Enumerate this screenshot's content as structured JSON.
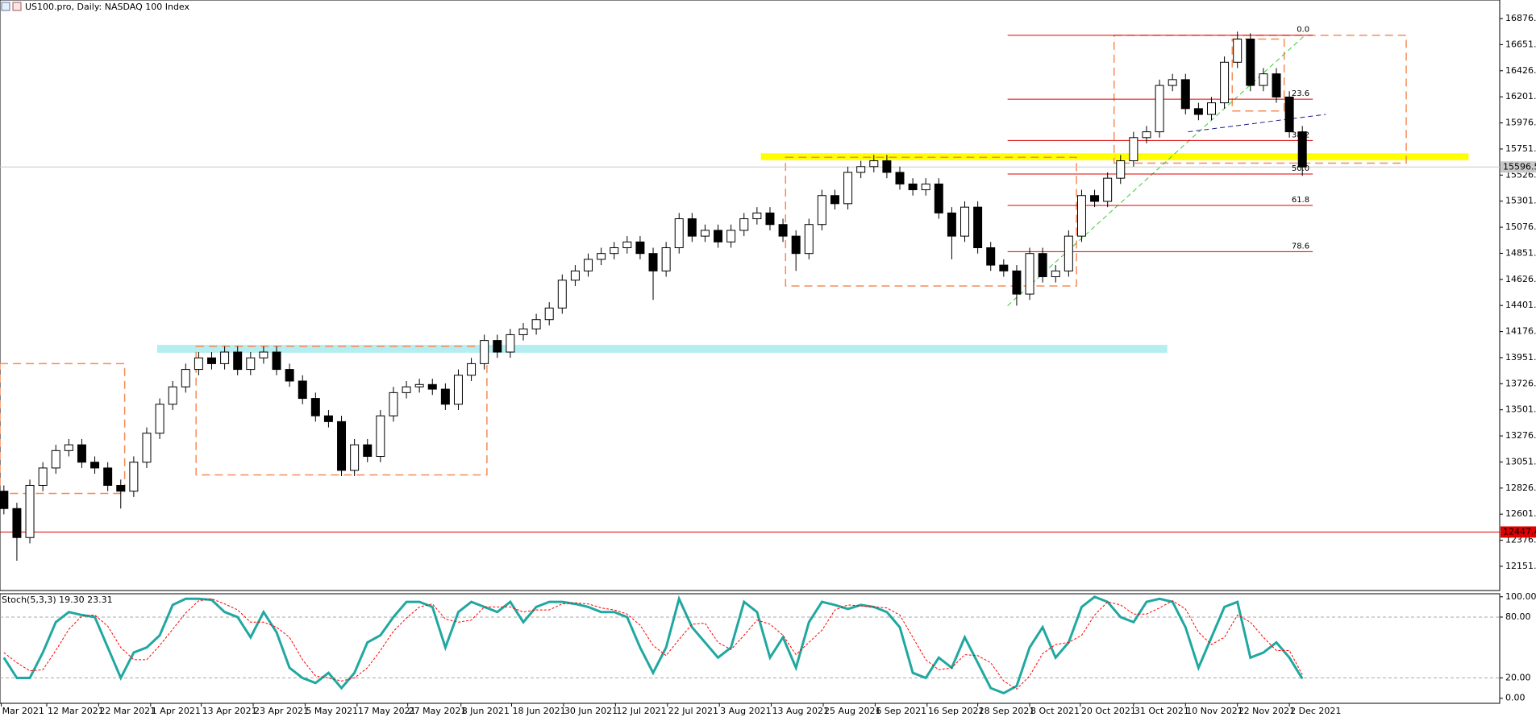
{
  "chart_data": [
    {
      "type": "candlestick",
      "title": "US100.pro, Daily: NASDAQ 100 Index",
      "xlim": [
        -0.3,
        115.2
      ],
      "ylim": [
        11943,
        17037
      ],
      "yticks": [
        12151.8,
        12376.8,
        12601.8,
        12826.8,
        13051.8,
        13276.8,
        13501.8,
        13726.8,
        13951.8,
        14176.8,
        14401.8,
        14626.8,
        14851.8,
        15076.8,
        15301.8,
        15526.8,
        15751.8,
        15976.8,
        16201.8,
        16426.8,
        16651.8,
        16876.8
      ],
      "open": [
        12800,
        12650,
        12400,
        12850,
        13000,
        13150,
        13200,
        13050,
        13000,
        12850,
        12800,
        13050,
        13300,
        13550,
        13700,
        13850,
        13950,
        13900,
        14000,
        13850,
        13950,
        14000,
        13850,
        13750,
        13600,
        13450,
        13400,
        12980,
        13200,
        13100,
        13450,
        13650,
        13700,
        13720,
        13680,
        13550,
        13800,
        13900,
        14100,
        14000,
        14150,
        14200,
        14280,
        14380,
        14620,
        14700,
        14800,
        14850,
        14900,
        14950,
        14850,
        14700,
        14900,
        15150,
        15000,
        15050,
        14950,
        15050,
        15150,
        15200,
        15100,
        15000,
        14850,
        15100,
        15350,
        15280,
        15550,
        15600,
        15650,
        15550,
        15450,
        15400,
        15450,
        15200,
        15000,
        15250,
        14900,
        14750,
        14700,
        14500,
        14850,
        14650,
        14700,
        15000,
        15350,
        15300,
        15500,
        15650,
        15850,
        15900,
        16300,
        16350,
        16100,
        16050,
        16150,
        16500,
        16700,
        16300,
        16400,
        16200,
        15900
      ],
      "high": [
        12850,
        12700,
        12900,
        13050,
        13200,
        13250,
        13250,
        13100,
        13050,
        12900,
        13100,
        13350,
        13600,
        13750,
        13900,
        14000,
        14000,
        14050,
        14050,
        14000,
        14050,
        14050,
        13900,
        13800,
        13650,
        13500,
        13450,
        13250,
        13250,
        13500,
        13700,
        13750,
        13770,
        13770,
        13730,
        13850,
        13950,
        14150,
        14150,
        14200,
        14250,
        14330,
        14430,
        14670,
        14750,
        14850,
        14900,
        14950,
        15000,
        15000,
        14900,
        14950,
        15200,
        15200,
        15100,
        15100,
        15100,
        15200,
        15250,
        15250,
        15150,
        15050,
        15150,
        15400,
        15400,
        15600,
        15650,
        15700,
        15700,
        15600,
        15500,
        15500,
        15500,
        15250,
        15300,
        15300,
        14950,
        14800,
        14750,
        14900,
        14900,
        14750,
        15050,
        15400,
        15400,
        15550,
        15700,
        15900,
        15950,
        16350,
        16400,
        16400,
        16150,
        16200,
        16550,
        16764,
        16750,
        16450,
        16450,
        16250,
        15950
      ],
      "low": [
        12600,
        12200,
        12350,
        12800,
        12950,
        13100,
        13000,
        12950,
        12800,
        12650,
        12750,
        13000,
        13250,
        13500,
        13650,
        13800,
        13850,
        13850,
        13800,
        13800,
        13900,
        13800,
        13700,
        13550,
        13400,
        13350,
        12930,
        12930,
        13050,
        13050,
        13400,
        13600,
        13650,
        13630,
        13500,
        13500,
        13750,
        13850,
        13950,
        13950,
        14100,
        14150,
        14230,
        14330,
        14570,
        14650,
        14750,
        14800,
        14850,
        14800,
        14450,
        14650,
        14850,
        14950,
        14950,
        14900,
        14900,
        15000,
        15100,
        15050,
        14950,
        14700,
        14800,
        15050,
        15230,
        15230,
        15500,
        15550,
        15500,
        15400,
        15350,
        15350,
        15150,
        14800,
        14950,
        14850,
        14700,
        14650,
        14400,
        14450,
        14600,
        14600,
        14650,
        14950,
        15250,
        15250,
        15450,
        15600,
        15800,
        15850,
        16250,
        16050,
        16000,
        16000,
        16100,
        16450,
        16250,
        16250,
        16150,
        15850,
        15520
      ],
      "close": [
        12650,
        12400,
        12850,
        13000,
        13150,
        13200,
        13050,
        13000,
        12850,
        12800,
        13050,
        13300,
        13550,
        13700,
        13850,
        13950,
        13900,
        14000,
        13850,
        13950,
        14000,
        13850,
        13750,
        13600,
        13450,
        13400,
        12980,
        13200,
        13100,
        13450,
        13650,
        13700,
        13720,
        13680,
        13550,
        13800,
        13900,
        14100,
        14000,
        14150,
        14200,
        14280,
        14380,
        14620,
        14700,
        14800,
        14850,
        14900,
        14950,
        14850,
        14700,
        14900,
        15150,
        15000,
        15050,
        14950,
        15050,
        15150,
        15200,
        15100,
        15000,
        14850,
        15100,
        15350,
        15280,
        15550,
        15600,
        15650,
        15550,
        15450,
        15400,
        15450,
        15200,
        15000,
        15250,
        14900,
        14750,
        14700,
        14500,
        14850,
        14650,
        14700,
        15000,
        15350,
        15300,
        15500,
        15650,
        15850,
        15900,
        16300,
        16350,
        16100,
        16050,
        16150,
        16500,
        16700,
        16300,
        16400,
        16200,
        15900,
        15596.5
      ],
      "up_color": "#ffffff",
      "down_color": "#000000",
      "price_lines": [
        {
          "value": 12447.4,
          "color": "#e00000"
        },
        {
          "value": 15596.5,
          "color": "#c8c8c8"
        }
      ],
      "fibonacci": {
        "color": "#e00000",
        "x": [
          77.3,
          100.8
        ],
        "ratios": [
          {
            "value": 0,
            "label": "0.0"
          },
          23.6,
          38.2,
          {
            "value": 50,
            "label": "50.0"
          },
          61.8,
          78.6
        ],
        "prices": [
          16733,
          16181,
          15825,
          15536,
          15265,
          14866
        ]
      },
      "drawings": [
        {
          "kind": "band",
          "color": "#ffff00",
          "x": [
            58.3,
            112.8
          ],
          "y": [
            15655,
            15715
          ]
        },
        {
          "kind": "band",
          "color": "#b4eef0",
          "x": [
            11.8,
            89.6
          ],
          "y": [
            13994,
            14062
          ]
        },
        {
          "kind": "rect",
          "color": "#f58b57",
          "x": [
            -0.3,
            9.3
          ],
          "y": [
            12780,
            13900
          ]
        },
        {
          "kind": "rect",
          "color": "#f58b57",
          "x": [
            14.8,
            37.2
          ],
          "y": [
            12940,
            14050
          ]
        },
        {
          "kind": "rect",
          "color": "#f58b57",
          "x": [
            60.2,
            82.6
          ],
          "y": [
            14570,
            15680
          ]
        },
        {
          "kind": "rect",
          "color": "#f58b57",
          "x": [
            85.5,
            108
          ],
          "y": [
            15630,
            16733
          ]
        },
        {
          "kind": "rect",
          "color": "#f58b57",
          "x": [
            94.6,
            98.6
          ],
          "y": [
            16080,
            16700
          ]
        },
        {
          "kind": "trend",
          "color": "#33cc33",
          "x": [
            77.3,
            100.2
          ],
          "y": [
            14400,
            16733
          ]
        },
        {
          "kind": "trend",
          "color": "#1a1a8c",
          "x": [
            91.2,
            101.8
          ],
          "y": [
            15900,
            16050
          ]
        }
      ]
    },
    {
      "type": "line",
      "title": "Stoch(5,3,3)",
      "header_values": [
        "19.30",
        "23.31"
      ],
      "xlim": [
        -0.3,
        115.2
      ],
      "ylim": [
        -5,
        103
      ],
      "yticks": [
        {
          "value": 100,
          "label": "100.00"
        },
        {
          "value": 80,
          "label": "80.00"
        },
        {
          "value": 20,
          "label": "20.00"
        },
        {
          "value": 0,
          "label": "0.00"
        }
      ],
      "levels": [
        80,
        20
      ],
      "xticks": [
        {
          "value": -0.2,
          "label": "Mar 2021"
        },
        {
          "value": 3.3,
          "label": "12 Mar 2021"
        },
        {
          "value": 7.3,
          "label": "22 Mar 2021"
        },
        {
          "value": 11.3,
          "label": "1 Apr 2021"
        },
        {
          "value": 15.2,
          "label": "13 Apr 2021"
        },
        {
          "value": 19.2,
          "label": "23 Apr 2021"
        },
        {
          "value": 23.2,
          "label": "5 May 2021"
        },
        {
          "value": 27.2,
          "label": "17 May 2021"
        },
        {
          "value": 31.1,
          "label": "27 May 2021"
        },
        {
          "value": 35.2,
          "label": "8 Jun 2021"
        },
        {
          "value": 39.1,
          "label": "18 Jun 2021"
        },
        {
          "value": 43.1,
          "label": "30 Jun 2021"
        },
        {
          "value": 47.1,
          "label": "12 Jul 2021"
        },
        {
          "value": 51.1,
          "label": "22 Jul 2021"
        },
        {
          "value": 55.1,
          "label": "3 Aug 2021"
        },
        {
          "value": 59.1,
          "label": "13 Aug 2021"
        },
        {
          "value": 63.1,
          "label": "25 Aug 2021"
        },
        {
          "value": 67.1,
          "label": "6 Sep 2021"
        },
        {
          "value": 71.1,
          "label": "16 Sep 2021"
        },
        {
          "value": 75,
          "label": "28 Sep 2021"
        },
        {
          "value": 79,
          "label": "8 Oct 2021"
        },
        {
          "value": 82.9,
          "label": "20 Oct 2021"
        },
        {
          "value": 87,
          "label": "31 Oct 2021"
        },
        {
          "value": 91,
          "label": "10 Nov 2021"
        },
        {
          "value": 95,
          "label": "22 Nov 2021"
        },
        {
          "value": 99,
          "label": "2 Dec 2021"
        }
      ],
      "series": [
        {
          "color": "#20a8a0",
          "values": [
            40,
            20,
            20,
            45,
            75,
            85,
            82,
            80,
            50,
            20,
            45,
            50,
            62,
            92,
            98,
            98,
            97,
            85,
            80,
            60,
            85,
            65,
            30,
            20,
            15,
            25,
            10,
            25,
            55,
            62,
            80,
            95,
            95,
            90,
            50,
            85,
            95,
            90,
            85,
            95,
            75,
            90,
            95,
            95,
            93,
            90,
            85,
            85,
            80,
            50,
            25,
            50,
            98,
            70,
            55,
            40,
            50,
            95,
            85,
            40,
            60,
            30,
            75,
            95,
            92,
            88,
            92,
            90,
            85,
            70,
            25,
            20,
            40,
            30,
            60,
            35,
            10,
            5,
            12,
            50,
            70,
            40,
            55,
            90,
            100,
            95,
            80,
            75,
            95,
            98,
            95,
            70,
            30,
            60,
            90,
            95,
            40,
            45,
            55,
            40,
            19.3
          ]
        },
        {
          "color": "#ff0000",
          "dash": true,
          "values": [
            45,
            35,
            27,
            28,
            47,
            68,
            81,
            82,
            71,
            50,
            38,
            38,
            52,
            68,
            84,
            96,
            98,
            93,
            87,
            75,
            75,
            70,
            60,
            38,
            22,
            20,
            17,
            20,
            30,
            47,
            66,
            79,
            90,
            93,
            78,
            75,
            77,
            90,
            90,
            90,
            85,
            87,
            87,
            93,
            94,
            93,
            89,
            87,
            83,
            72,
            52,
            42,
            58,
            73,
            74,
            55,
            48,
            62,
            77,
            73,
            62,
            43,
            55,
            67,
            87,
            92,
            91,
            90,
            89,
            82,
            60,
            38,
            28,
            30,
            43,
            42,
            35,
            17,
            9,
            22,
            44,
            53,
            55,
            62,
            82,
            95,
            92,
            83,
            83,
            89,
            96,
            88,
            65,
            53,
            60,
            82,
            75,
            60,
            47,
            47,
            23.31
          ]
        }
      ]
    }
  ]
}
